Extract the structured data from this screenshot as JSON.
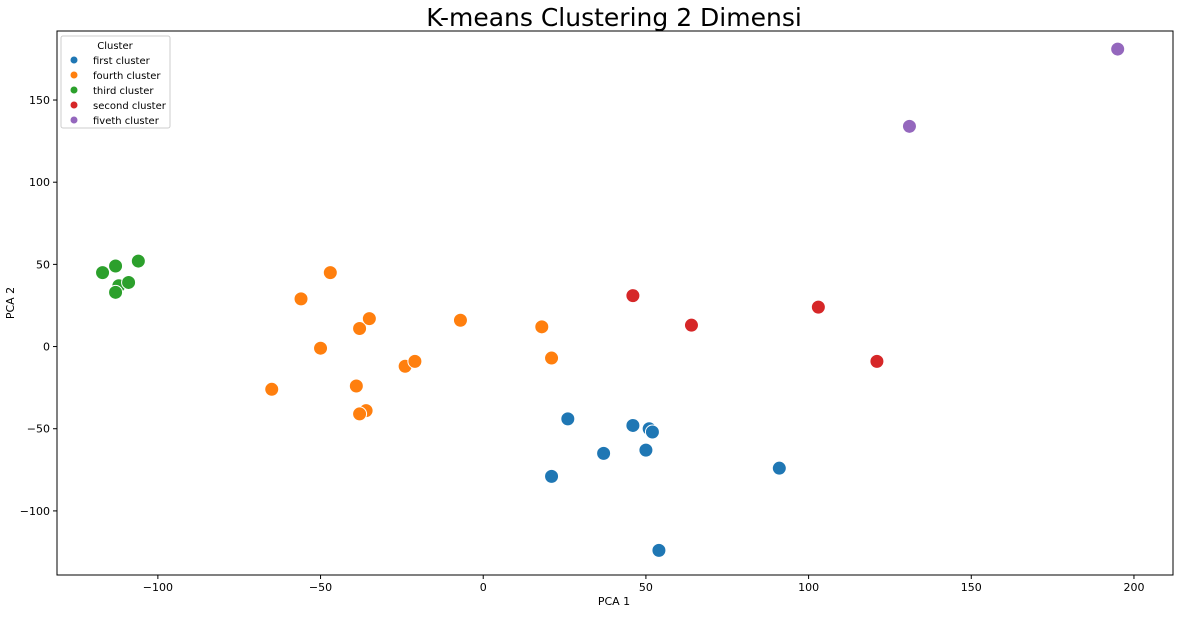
{
  "chart_data": {
    "type": "scatter",
    "title": "K-means Clustering 2 Dimensi",
    "xlabel": "PCA 1",
    "ylabel": "PCA 2",
    "xlim": [
      -131,
      212
    ],
    "ylim": [
      -139,
      192
    ],
    "xticks": [
      -100,
      -50,
      0,
      50,
      100,
      150,
      200
    ],
    "yticks": [
      -100,
      -50,
      0,
      50,
      100,
      150
    ],
    "grid": false,
    "legend": {
      "title": "Cluster",
      "placement": "top-left"
    },
    "series": [
      {
        "name": "first cluster",
        "color": "#1f77b4",
        "points": [
          [
            26,
            -44
          ],
          [
            46,
            -48
          ],
          [
            51,
            -50
          ],
          [
            52,
            -52
          ],
          [
            50,
            -63
          ],
          [
            37,
            -65
          ],
          [
            21,
            -79
          ],
          [
            91,
            -74
          ],
          [
            54,
            -124
          ]
        ]
      },
      {
        "name": "fourth cluster",
        "color": "#ff7f0e",
        "points": [
          [
            -47,
            45
          ],
          [
            -56,
            29
          ],
          [
            -38,
            11
          ],
          [
            -35,
            17
          ],
          [
            -7,
            16
          ],
          [
            18,
            12
          ],
          [
            -50,
            -1
          ],
          [
            -24,
            -12
          ],
          [
            -21,
            -9
          ],
          [
            21,
            -7
          ],
          [
            -65,
            -26
          ],
          [
            -39,
            -24
          ],
          [
            -36,
            -39
          ],
          [
            -38,
            -41
          ]
        ]
      },
      {
        "name": "third cluster",
        "color": "#2ca02c",
        "points": [
          [
            -117,
            45
          ],
          [
            -113,
            49
          ],
          [
            -106,
            52
          ],
          [
            -112,
            37
          ],
          [
            -109,
            39
          ],
          [
            -113,
            33
          ]
        ]
      },
      {
        "name": "second cluster",
        "color": "#d62728",
        "points": [
          [
            46,
            31
          ],
          [
            64,
            13
          ],
          [
            103,
            24
          ],
          [
            121,
            -9
          ]
        ]
      },
      {
        "name": "fiveth cluster",
        "color": "#9467bd",
        "points": [
          [
            131,
            134
          ],
          [
            195,
            181
          ]
        ]
      }
    ]
  }
}
